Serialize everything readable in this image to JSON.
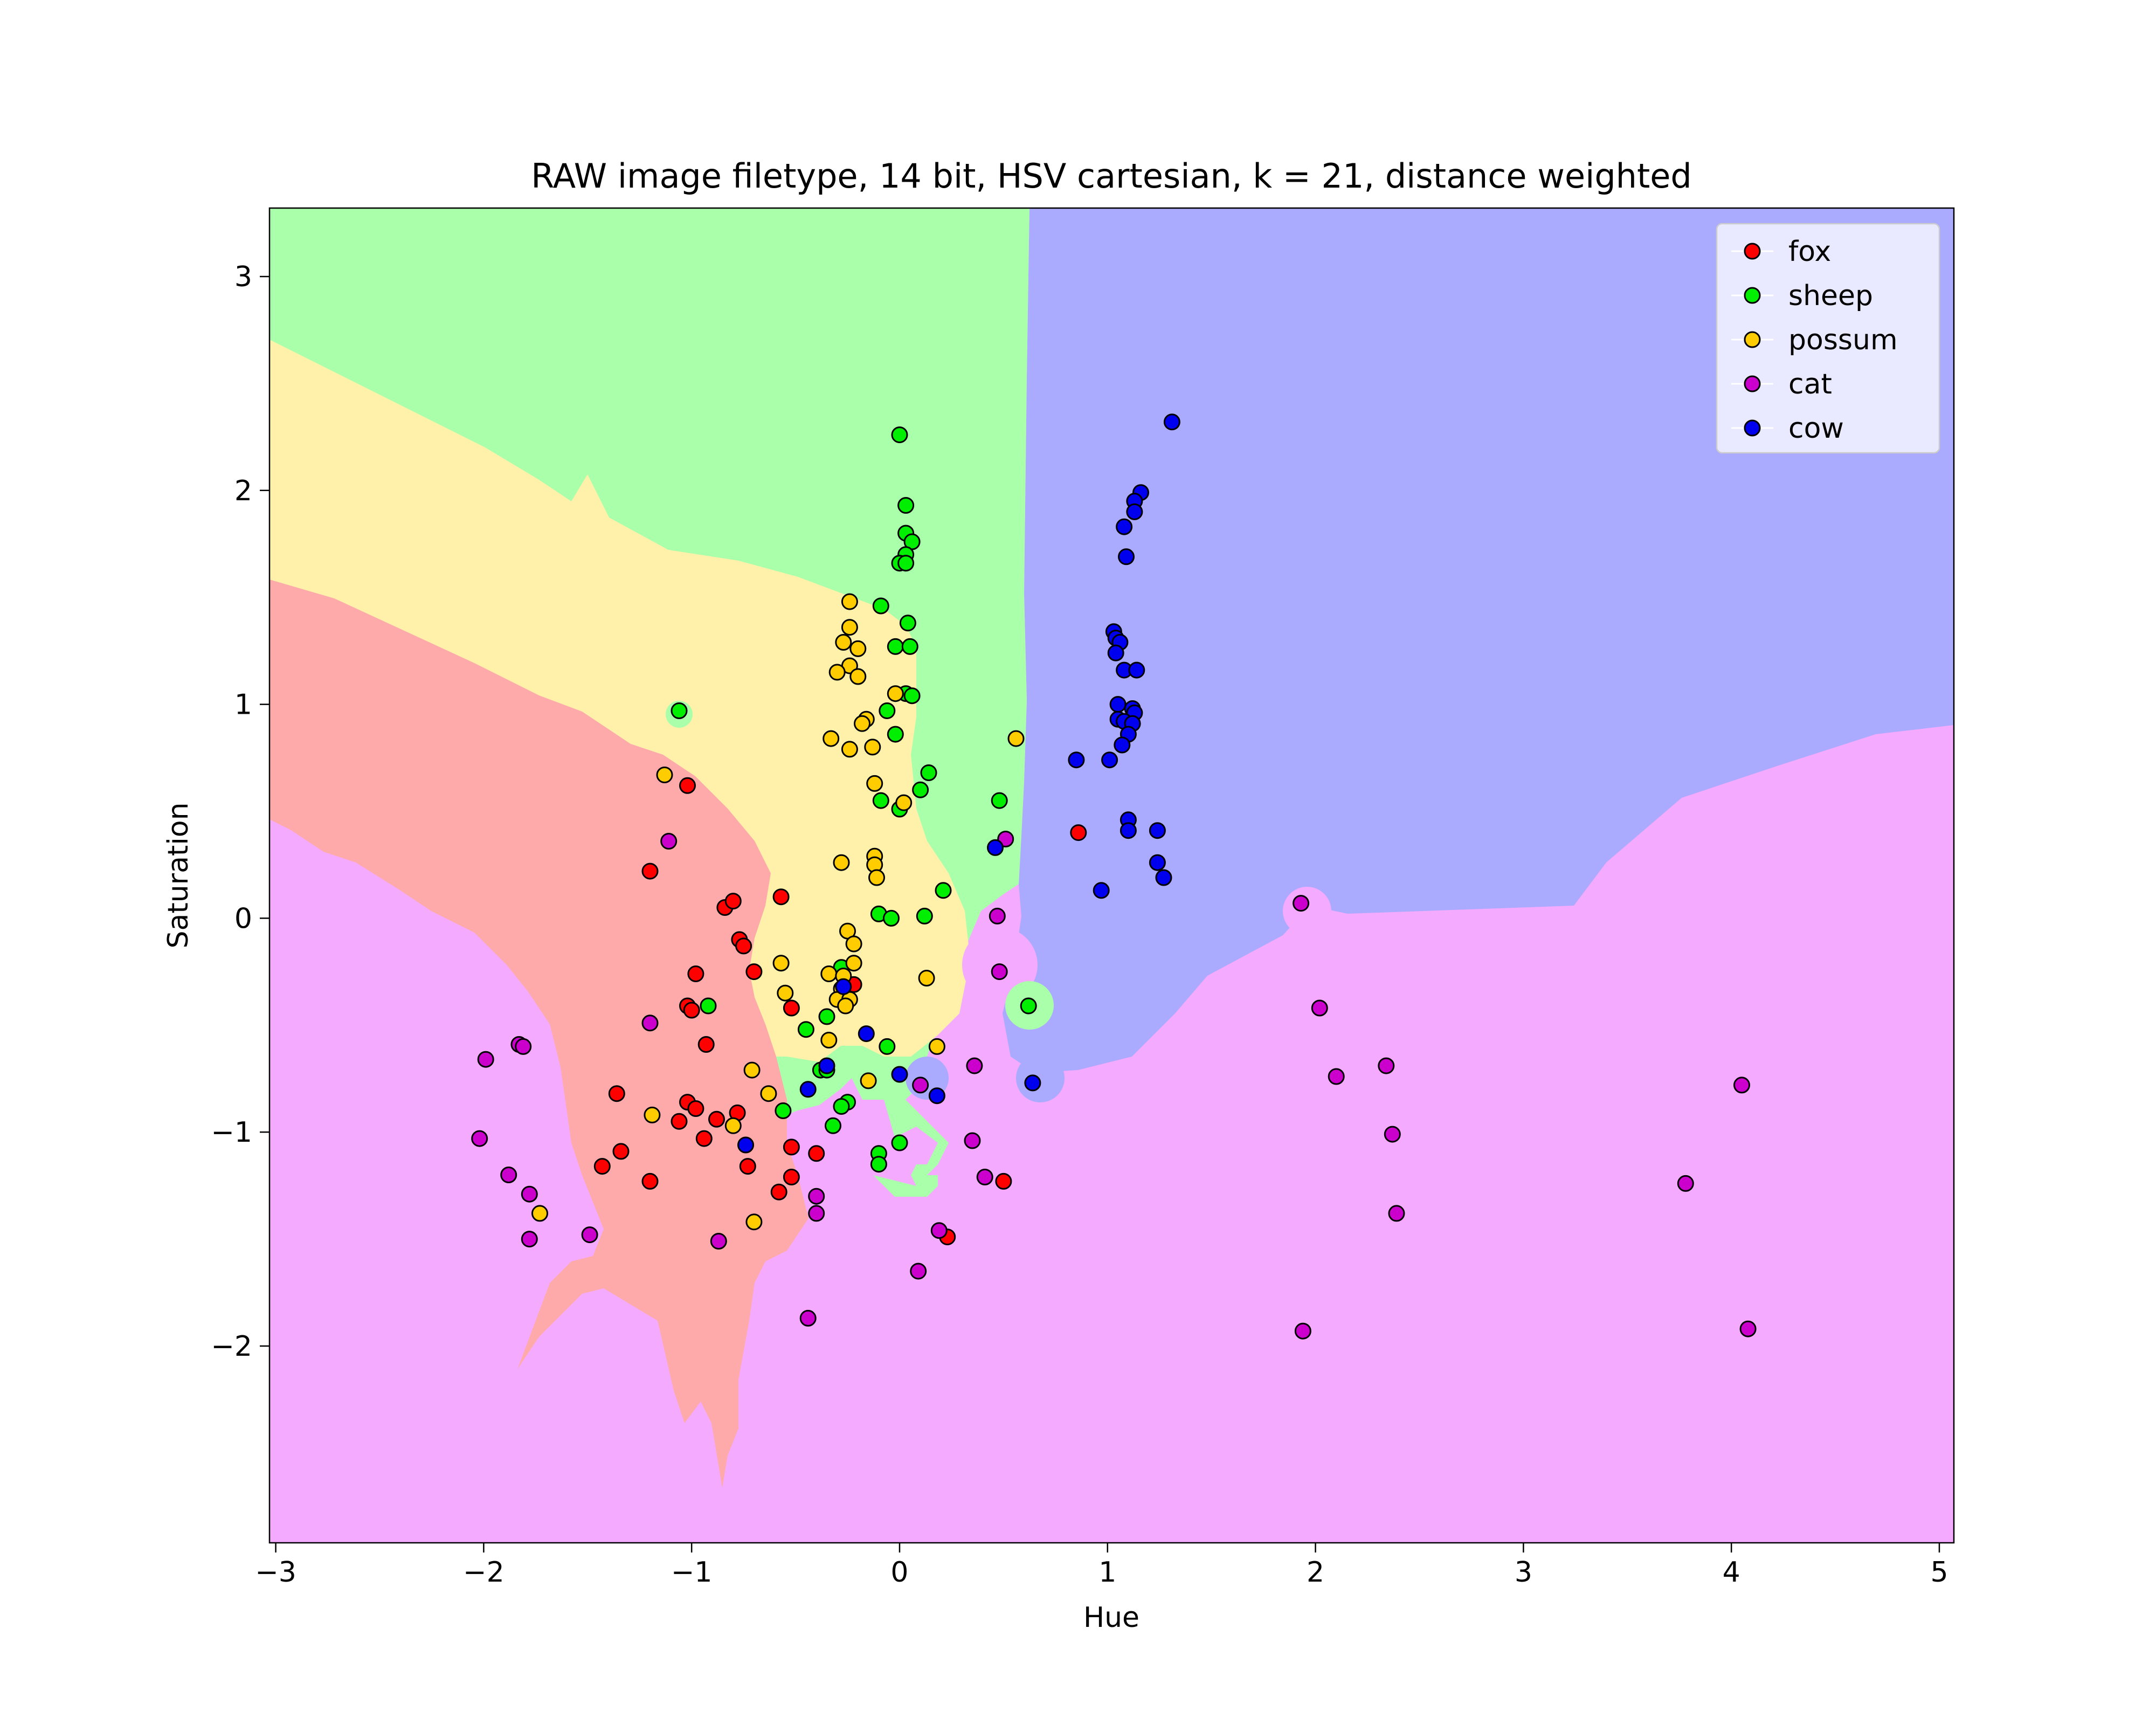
{
  "chart_data": {
    "type": "scatter",
    "title": "RAW image filetype, 14 bit, HSV cartesian, k = 21, distance weighted",
    "xlabel": "Hue",
    "ylabel": "Saturation",
    "xlim": [
      -3.03,
      5.07
    ],
    "ylim": [
      -2.92,
      3.32
    ],
    "xticks": [
      -3,
      -2,
      -1,
      0,
      1,
      2,
      3,
      4,
      5
    ],
    "xtick_labels": [
      "−3",
      "−2",
      "−1",
      "0",
      "1",
      "2",
      "3",
      "4",
      "5"
    ],
    "yticks": [
      -2,
      -1,
      0,
      1,
      2,
      3
    ],
    "ytick_labels": [
      "−2",
      "−1",
      "0",
      "1",
      "2",
      "3"
    ],
    "grid": false,
    "legend_position": "top-right",
    "region_colors": {
      "fox": "#ffaaaa",
      "sheep": "#aaffaa",
      "possum": "#fff0aa",
      "cat": "#f4aaff",
      "cow": "#aaaaff"
    },
    "series": [
      {
        "name": "fox",
        "color": "#ff0000",
        "points": [
          [
            -1.02,
            0.62
          ],
          [
            -1.2,
            0.22
          ],
          [
            -0.84,
            0.05
          ],
          [
            -0.8,
            0.08
          ],
          [
            -0.57,
            0.1
          ],
          [
            -0.77,
            -0.1
          ],
          [
            -0.75,
            -0.13
          ],
          [
            -0.98,
            -0.26
          ],
          [
            -0.7,
            -0.25
          ],
          [
            -1.02,
            -0.41
          ],
          [
            -1.0,
            -0.43
          ],
          [
            -0.52,
            -0.42
          ],
          [
            -0.93,
            -0.59
          ],
          [
            -0.22,
            -0.31
          ],
          [
            -1.36,
            -0.82
          ],
          [
            -1.02,
            -0.86
          ],
          [
            -0.98,
            -0.89
          ],
          [
            -0.78,
            -0.91
          ],
          [
            -1.06,
            -0.95
          ],
          [
            -0.88,
            -0.94
          ],
          [
            -0.94,
            -1.03
          ],
          [
            -0.52,
            -1.07
          ],
          [
            -0.4,
            -1.1
          ],
          [
            -1.34,
            -1.09
          ],
          [
            -1.43,
            -1.16
          ],
          [
            -0.73,
            -1.16
          ],
          [
            -1.2,
            -1.23
          ],
          [
            -0.52,
            -1.21
          ],
          [
            -0.58,
            -1.28
          ],
          [
            0.5,
            -1.23
          ],
          [
            0.23,
            -1.49
          ],
          [
            0.86,
            0.4
          ]
        ]
      },
      {
        "name": "sheep",
        "color": "#00ee00",
        "points": [
          [
            0.0,
            2.26
          ],
          [
            0.03,
            1.93
          ],
          [
            0.03,
            1.8
          ],
          [
            0.06,
            1.76
          ],
          [
            0.03,
            1.7
          ],
          [
            0.0,
            1.66
          ],
          [
            0.03,
            1.66
          ],
          [
            -0.09,
            1.46
          ],
          [
            0.04,
            1.38
          ],
          [
            -0.02,
            1.27
          ],
          [
            0.05,
            1.27
          ],
          [
            0.03,
            1.05
          ],
          [
            0.06,
            1.04
          ],
          [
            -0.06,
            0.97
          ],
          [
            -1.06,
            0.97
          ],
          [
            -0.02,
            0.86
          ],
          [
            0.14,
            0.68
          ],
          [
            0.1,
            0.6
          ],
          [
            -0.09,
            0.55
          ],
          [
            0.0,
            0.51
          ],
          [
            0.48,
            0.55
          ],
          [
            0.21,
            0.13
          ],
          [
            -0.1,
            0.02
          ],
          [
            0.12,
            0.01
          ],
          [
            -0.04,
            0.0
          ],
          [
            -0.28,
            -0.23
          ],
          [
            -0.92,
            -0.41
          ],
          [
            0.62,
            -0.41
          ],
          [
            -0.35,
            -0.46
          ],
          [
            -0.45,
            -0.52
          ],
          [
            -0.06,
            -0.6
          ],
          [
            -0.38,
            -0.71
          ],
          [
            -0.35,
            -0.71
          ],
          [
            -0.25,
            -0.86
          ],
          [
            -0.28,
            -0.88
          ],
          [
            -0.56,
            -0.9
          ],
          [
            -0.32,
            -0.97
          ],
          [
            0.0,
            -1.05
          ],
          [
            -0.1,
            -1.1
          ],
          [
            -0.1,
            -1.15
          ]
        ]
      },
      {
        "name": "possum",
        "color": "#ffcc00",
        "points": [
          [
            -0.24,
            1.48
          ],
          [
            -0.24,
            1.36
          ],
          [
            -0.27,
            1.29
          ],
          [
            -0.2,
            1.26
          ],
          [
            -0.24,
            1.18
          ],
          [
            -0.3,
            1.15
          ],
          [
            -0.2,
            1.13
          ],
          [
            -0.02,
            1.05
          ],
          [
            -0.16,
            0.93
          ],
          [
            -0.18,
            0.91
          ],
          [
            -0.33,
            0.84
          ],
          [
            0.56,
            0.84
          ],
          [
            -0.13,
            0.8
          ],
          [
            -0.24,
            0.79
          ],
          [
            -1.13,
            0.67
          ],
          [
            -0.12,
            0.63
          ],
          [
            0.02,
            0.54
          ],
          [
            -0.12,
            0.29
          ],
          [
            -0.28,
            0.26
          ],
          [
            -0.12,
            0.25
          ],
          [
            -0.11,
            0.19
          ],
          [
            -0.25,
            -0.06
          ],
          [
            -0.22,
            -0.12
          ],
          [
            -0.57,
            -0.21
          ],
          [
            -0.22,
            -0.21
          ],
          [
            -0.34,
            -0.26
          ],
          [
            -0.27,
            -0.27
          ],
          [
            0.13,
            -0.28
          ],
          [
            -0.55,
            -0.35
          ],
          [
            -0.28,
            -0.33
          ],
          [
            -0.3,
            -0.38
          ],
          [
            -0.24,
            -0.38
          ],
          [
            -0.26,
            -0.41
          ],
          [
            -0.34,
            -0.57
          ],
          [
            0.18,
            -0.6
          ],
          [
            -0.71,
            -0.71
          ],
          [
            -0.15,
            -0.76
          ],
          [
            -0.63,
            -0.82
          ],
          [
            -1.19,
            -0.92
          ],
          [
            -0.8,
            -0.97
          ],
          [
            -0.7,
            -1.42
          ],
          [
            -1.73,
            -1.38
          ]
        ]
      },
      {
        "name": "cat",
        "color": "#cc00cc",
        "points": [
          [
            -1.11,
            0.36
          ],
          [
            0.51,
            0.37
          ],
          [
            1.93,
            0.07
          ],
          [
            0.47,
            0.01
          ],
          [
            0.48,
            -0.25
          ],
          [
            2.02,
            -0.42
          ],
          [
            -1.2,
            -0.49
          ],
          [
            -1.83,
            -0.59
          ],
          [
            -1.81,
            -0.6
          ],
          [
            -1.99,
            -0.66
          ],
          [
            0.36,
            -0.69
          ],
          [
            2.34,
            -0.69
          ],
          [
            2.1,
            -0.74
          ],
          [
            4.05,
            -0.78
          ],
          [
            0.1,
            -0.78
          ],
          [
            2.37,
            -1.01
          ],
          [
            -2.02,
            -1.03
          ],
          [
            0.35,
            -1.04
          ],
          [
            0.41,
            -1.21
          ],
          [
            -1.88,
            -1.2
          ],
          [
            3.78,
            -1.24
          ],
          [
            -1.78,
            -1.29
          ],
          [
            -0.4,
            -1.3
          ],
          [
            2.39,
            -1.38
          ],
          [
            -0.4,
            -1.38
          ],
          [
            0.19,
            -1.46
          ],
          [
            -1.49,
            -1.48
          ],
          [
            -1.78,
            -1.5
          ],
          [
            -0.87,
            -1.51
          ],
          [
            0.09,
            -1.65
          ],
          [
            -0.44,
            -1.87
          ],
          [
            1.94,
            -1.93
          ],
          [
            4.08,
            -1.92
          ]
        ]
      },
      {
        "name": "cow",
        "color": "#0000ee",
        "points": [
          [
            1.31,
            2.32
          ],
          [
            1.16,
            1.99
          ],
          [
            1.13,
            1.95
          ],
          [
            1.13,
            1.9
          ],
          [
            1.08,
            1.83
          ],
          [
            1.09,
            1.69
          ],
          [
            1.03,
            1.34
          ],
          [
            1.04,
            1.31
          ],
          [
            1.06,
            1.29
          ],
          [
            1.04,
            1.24
          ],
          [
            1.08,
            1.16
          ],
          [
            1.14,
            1.16
          ],
          [
            1.05,
            1.0
          ],
          [
            1.12,
            0.98
          ],
          [
            1.13,
            0.96
          ],
          [
            1.05,
            0.93
          ],
          [
            1.08,
            0.92
          ],
          [
            1.12,
            0.91
          ],
          [
            1.1,
            0.86
          ],
          [
            1.07,
            0.81
          ],
          [
            0.85,
            0.74
          ],
          [
            1.01,
            0.74
          ],
          [
            1.1,
            0.46
          ],
          [
            1.1,
            0.41
          ],
          [
            1.24,
            0.41
          ],
          [
            0.46,
            0.33
          ],
          [
            1.24,
            0.26
          ],
          [
            1.27,
            0.19
          ],
          [
            0.97,
            0.13
          ],
          [
            -0.27,
            -0.32
          ],
          [
            -0.35,
            -0.69
          ],
          [
            -0.16,
            -0.54
          ],
          [
            0.0,
            -0.73
          ],
          [
            0.18,
            -0.83
          ],
          [
            0.64,
            -0.77
          ],
          [
            -0.44,
            -0.8
          ],
          [
            -0.74,
            -1.06
          ]
        ]
      }
    ]
  }
}
